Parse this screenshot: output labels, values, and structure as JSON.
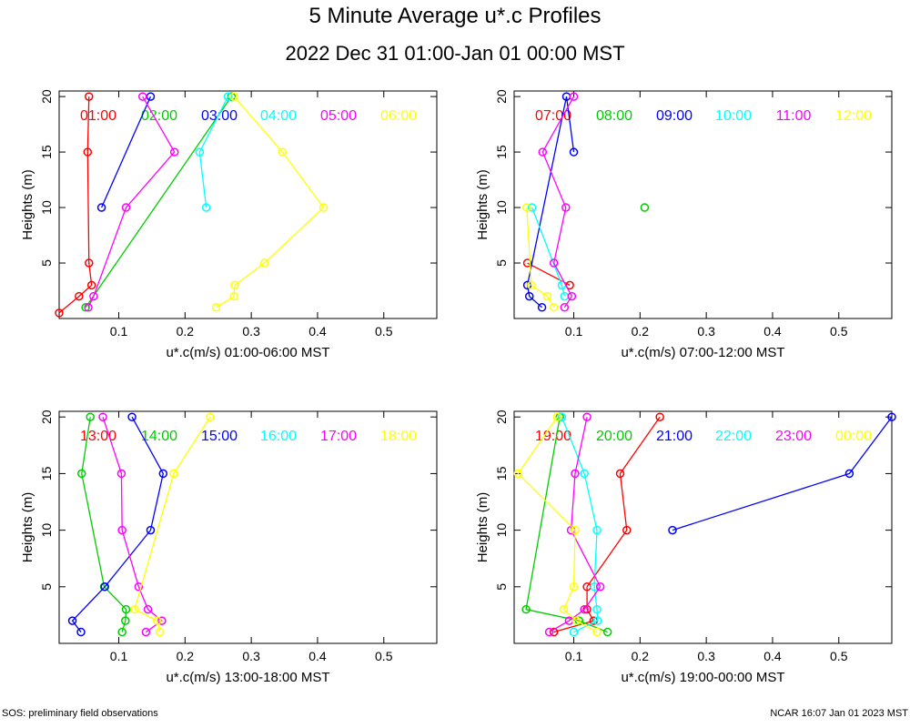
{
  "chart_data": {
    "type": "scatter",
    "title": "5 Minute Average u*.c Profiles",
    "subtitle": "2022 Dec 31 01:00-Jan 01 00:00 MST",
    "ylabel": "Heights (m)",
    "xlim": [
      0.01,
      0.58
    ],
    "ylim": [
      0,
      20.5
    ],
    "x_ticks": [
      0.1,
      0.2,
      0.3,
      0.4,
      0.5
    ],
    "x_tick_labels": [
      "0.1",
      "0.2",
      "0.3",
      "0.4",
      "0.5"
    ],
    "y_ticks": [
      5,
      10,
      15,
      20
    ],
    "y_tick_labels": [
      "5",
      "10",
      "15",
      "20"
    ],
    "series_colors": [
      "#ff0000",
      "#00cc00",
      "#0000ff",
      "#00ffff",
      "#ff00ff",
      "#ffff00"
    ],
    "panels": [
      {
        "xlabel": "u*.c(m/s) 01:00-06:00 MST",
        "series": [
          {
            "name": "01:00",
            "points": [
              [
                0.01,
                0.5
              ],
              [
                0.04,
                2.0
              ],
              [
                0.059,
                3.0
              ],
              [
                0.055,
                5.0
              ],
              [
                0.053,
                15.0
              ],
              [
                0.055,
                20.0
              ]
            ]
          },
          {
            "name": "02:00",
            "points": [
              [
                0.05,
                1.0
              ],
              [
                0.27,
                20.0
              ]
            ]
          },
          {
            "name": "03:00",
            "points": [
              [
                0.074,
                10.0
              ],
              [
                0.148,
                20.0
              ]
            ]
          },
          {
            "name": "04:00",
            "points": [
              [
                0.232,
                10.0
              ],
              [
                0.222,
                15.0
              ],
              [
                0.265,
                20.0
              ]
            ]
          },
          {
            "name": "05:00",
            "points": [
              [
                0.054,
                1.0
              ],
              [
                0.062,
                2.0
              ],
              [
                0.111,
                10.0
              ],
              [
                0.184,
                15.0
              ],
              [
                0.136,
                20.0
              ]
            ]
          },
          {
            "name": "06:00",
            "points": [
              [
                0.247,
                1.0
              ],
              [
                0.274,
                2.0
              ],
              [
                0.275,
                3.0
              ],
              [
                0.32,
                5.0
              ],
              [
                0.409,
                10.0
              ],
              [
                0.347,
                15.0
              ],
              [
                0.274,
                20.0
              ]
            ]
          }
        ]
      },
      {
        "xlabel": "u*.c(m/s) 07:00-12:00 MST",
        "series": [
          {
            "name": "07:00",
            "points": [
              [
                0.03,
                5.0
              ],
              [
                0.094,
                3.0
              ]
            ]
          },
          {
            "name": "08:00",
            "points": [
              [
                0.207,
                10.0
              ]
            ]
          },
          {
            "name": "09:00",
            "points": [
              [
                0.052,
                1.0
              ],
              [
                0.033,
                2.0
              ],
              [
                0.03,
                3.0
              ],
              [
                0.089,
                20.0
              ],
              [
                0.1,
                15.0
              ]
            ]
          },
          {
            "name": "10:00",
            "points": [
              [
                0.086,
                2.0
              ],
              [
                0.082,
                3.0
              ],
              [
                0.037,
                10.0
              ]
            ]
          },
          {
            "name": "11:00",
            "points": [
              [
                0.086,
                1.0
              ],
              [
                0.097,
                2.0
              ],
              [
                0.07,
                5.0
              ],
              [
                0.088,
                10.0
              ],
              [
                0.053,
                15.0
              ],
              [
                0.1,
                20.0
              ]
            ]
          },
          {
            "name": "12:00",
            "points": [
              [
                0.07,
                1.0
              ],
              [
                0.06,
                2.0
              ],
              [
                0.036,
                3.0
              ],
              [
                0.029,
                10.0
              ]
            ]
          }
        ]
      },
      {
        "xlabel": "u*.c(m/s) 13:00-18:00 MST",
        "series": [
          {
            "name": "13:00",
            "points": []
          },
          {
            "name": "14:00",
            "points": [
              [
                0.105,
                1.0
              ],
              [
                0.11,
                2.0
              ],
              [
                0.111,
                3.0
              ],
              [
                0.078,
                5.0
              ],
              [
                0.044,
                15.0
              ],
              [
                0.057,
                20.0
              ]
            ]
          },
          {
            "name": "15:00",
            "points": [
              [
                0.043,
                1.0
              ],
              [
                0.03,
                2.0
              ],
              [
                0.079,
                5.0
              ],
              [
                0.148,
                10.0
              ],
              [
                0.167,
                15.0
              ],
              [
                0.12,
                20.0
              ]
            ]
          },
          {
            "name": "16:00",
            "points": []
          },
          {
            "name": "17:00",
            "points": [
              [
                0.141,
                1.0
              ],
              [
                0.165,
                2.0
              ],
              [
                0.144,
                3.0
              ],
              [
                0.13,
                5.0
              ],
              [
                0.105,
                10.0
              ],
              [
                0.104,
                15.0
              ],
              [
                0.076,
                20.0
              ]
            ]
          },
          {
            "name": "18:00",
            "points": [
              [
                0.162,
                1.0
              ],
              [
                0.158,
                2.0
              ],
              [
                0.124,
                3.0
              ],
              [
                0.183,
                15.0
              ],
              [
                0.238,
                20.0
              ]
            ]
          }
        ]
      },
      {
        "xlabel": "u*.c(m/s) 19:00-00:00 MST",
        "series": [
          {
            "name": "19:00",
            "points": [
              [
                0.07,
                1.0
              ],
              [
                0.13,
                2.0
              ],
              [
                0.12,
                3.0
              ],
              [
                0.12,
                5.0
              ],
              [
                0.18,
                10.0
              ],
              [
                0.17,
                15.0
              ],
              [
                0.23,
                20.0
              ]
            ]
          },
          {
            "name": "20:00",
            "points": [
              [
                0.151,
                1.0
              ],
              [
                0.108,
                2.0
              ],
              [
                0.028,
                3.0
              ],
              [
                0.079,
                20.0
              ]
            ]
          },
          {
            "name": "21:00",
            "points": [
              [
                0.249,
                10.0
              ],
              [
                0.516,
                15.0
              ],
              [
                0.58,
                20.0
              ]
            ]
          },
          {
            "name": "22:00",
            "points": [
              [
                0.1,
                1.0
              ],
              [
                0.136,
                2.0
              ],
              [
                0.135,
                3.0
              ],
              [
                0.131,
                5.0
              ],
              [
                0.135,
                10.0
              ],
              [
                0.116,
                15.0
              ],
              [
                0.082,
                20.0
              ]
            ]
          },
          {
            "name": "23:00",
            "points": [
              [
                0.063,
                1.0
              ],
              [
                0.093,
                2.0
              ],
              [
                0.116,
                3.0
              ],
              [
                0.14,
                5.0
              ],
              [
                0.096,
                10.0
              ],
              [
                0.102,
                15.0
              ],
              [
                0.12,
                20.0
              ]
            ]
          },
          {
            "name": "00:00",
            "points": [
              [
                0.135,
                1.0
              ],
              [
                0.104,
                2.0
              ],
              [
                0.085,
                3.0
              ],
              [
                0.1,
                5.0
              ],
              [
                0.102,
                10.0
              ],
              [
                0.016,
                15.0
              ],
              [
                0.075,
                20.0
              ]
            ]
          }
        ]
      }
    ]
  },
  "footer": {
    "left": "SOS: preliminary field observations",
    "right": "NCAR 16:07 Jan 01 2023 MST"
  }
}
